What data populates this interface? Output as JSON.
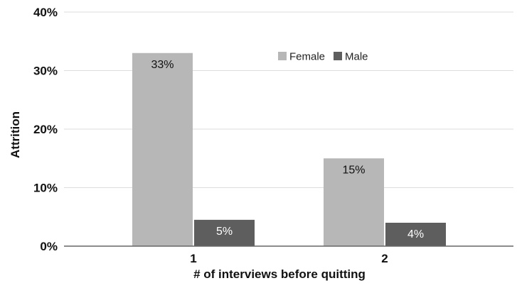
{
  "chart_data": {
    "type": "bar",
    "categories": [
      "1",
      "2"
    ],
    "series": [
      {
        "name": "Female",
        "values": [
          33,
          15
        ],
        "labels": [
          "33%",
          "15%"
        ],
        "color": "#b7b7b7",
        "label_color": "#111111"
      },
      {
        "name": "Male",
        "values": [
          4.5,
          4
        ],
        "labels": [
          "5%",
          "4%"
        ],
        "color": "#5e5e5e",
        "label_color": "#ffffff"
      }
    ],
    "xlabel": "# of interviews before quitting",
    "ylabel": "Attrition",
    "ylim": [
      0,
      40
    ],
    "yticks": [
      0,
      10,
      20,
      30,
      40
    ],
    "ytick_labels": [
      "0%",
      "10%",
      "20%",
      "30%",
      "40%"
    ],
    "grid": true,
    "gridline_color": "#dddddd",
    "axis_color": "#666666",
    "legend_position": "top-right"
  }
}
